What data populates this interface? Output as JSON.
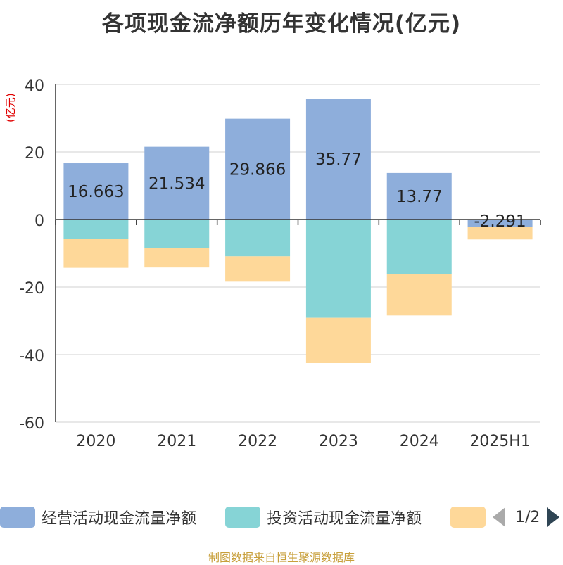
{
  "chart_data": {
    "type": "bar",
    "stacked": true,
    "title": "各项现金流净额历年变化情况(亿元)",
    "ylabel": "(亿元)",
    "categories": [
      "2020",
      "2021",
      "2022",
      "2023",
      "2024",
      "2025H1"
    ],
    "ylim": [
      -60,
      40
    ],
    "yticks": [
      40,
      20,
      0,
      -20,
      -40,
      -60
    ],
    "grid": true,
    "legend_position": "bottom",
    "series": [
      {
        "name": "经营活动现金流量净额",
        "color": "#8eaedb",
        "values": [
          16.663,
          21.534,
          29.866,
          35.77,
          13.77,
          -2.291
        ],
        "labels": [
          "16.663",
          "21.534",
          "29.866",
          "35.77",
          "13.77",
          "-2.291"
        ]
      },
      {
        "name": "投资活动现金流量净额",
        "color": "#86d4d6",
        "values": [
          -5.8,
          -8.4,
          -10.9,
          -29.1,
          -16.1,
          0
        ]
      },
      {
        "name": "",
        "color": "#fed899",
        "values": [
          -8.5,
          -5.8,
          -7.5,
          -13.4,
          -12.3,
          -3.6
        ]
      }
    ]
  },
  "legend": {
    "page": "1/2"
  },
  "footer": "制图数据来自恒生聚源数据库"
}
